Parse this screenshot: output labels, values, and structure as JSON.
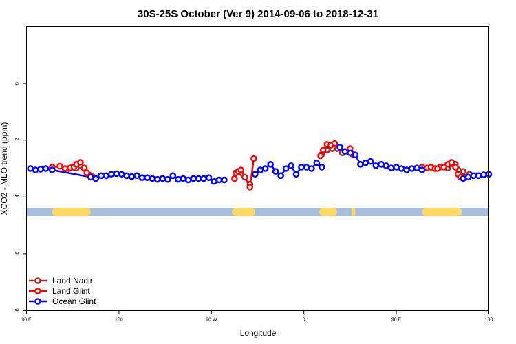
{
  "chart_data": {
    "type": "line",
    "title": "30S-25S October (Ver 9)   2014-09-06 to 2018-12-31",
    "xlabel": "Longitude",
    "ylabel": "XCO2 - MLO trend (ppm)",
    "xlim": [
      0,
      360
    ],
    "ylim": [
      -8,
      2
    ],
    "x_ticks": [
      {
        "pos": 0,
        "label": "90 E"
      },
      {
        "pos": 72,
        "label": "180"
      },
      {
        "pos": 144,
        "label": "90 W"
      },
      {
        "pos": 216,
        "label": "0"
      },
      {
        "pos": 288,
        "label": "90 E"
      },
      {
        "pos": 360,
        "label": "180"
      }
    ],
    "y_ticks": [
      {
        "pos": 0,
        "label": "0"
      },
      {
        "pos": -2,
        "label": "-2"
      },
      {
        "pos": -4,
        "label": "-4"
      },
      {
        "pos": -6,
        "label": "-6"
      },
      {
        "pos": -8,
        "label": "-8"
      }
    ],
    "grid": false,
    "legend_position": "bottom-left",
    "land_mask_band": {
      "y_range": [
        -4.67,
        -4.38
      ],
      "ocean_color": "#a6bddb",
      "land_color": "#ffd966",
      "land_segments": [
        [
          20,
          50
        ],
        [
          160,
          178
        ],
        [
          228,
          242
        ],
        [
          253,
          256
        ],
        [
          308,
          339
        ]
      ]
    },
    "series": [
      {
        "name": "Land Nadir",
        "color": "#a52a2a",
        "points": [
          [
            33,
            -3.0
          ],
          [
            36,
            -2.95
          ],
          [
            39,
            -2.98
          ],
          [
            42,
            -2.9
          ],
          [
            45,
            -3.0
          ],
          [
            48,
            -3.2
          ],
          [
            52,
            -3.3
          ],
          [
            163,
            -3.15
          ],
          [
            170,
            -3.3
          ],
          [
            174,
            -3.55
          ],
          [
            230,
            -2.5
          ],
          [
            234,
            -2.35
          ],
          [
            238,
            -2.3
          ],
          [
            242,
            -2.3
          ],
          [
            246,
            -2.45
          ],
          [
            322,
            -2.95
          ],
          [
            328,
            -2.98
          ],
          [
            334,
            -2.85
          ],
          [
            340,
            -3.1
          ],
          [
            345,
            -3.2
          ]
        ]
      },
      {
        "name": "Land Glint",
        "color": "#ff0000",
        "points": [
          [
            20,
            -2.95
          ],
          [
            26,
            -2.92
          ],
          [
            30,
            -3.0
          ],
          [
            34,
            -2.98
          ],
          [
            37,
            -2.95
          ],
          [
            39,
            -2.85
          ],
          [
            42,
            -2.78
          ],
          [
            45,
            -2.98
          ],
          [
            47,
            -3.15
          ],
          [
            50,
            -3.25
          ],
          [
            162,
            -3.35
          ],
          [
            165,
            -3.1
          ],
          [
            167,
            -3.05
          ],
          [
            174,
            -3.65
          ],
          [
            177,
            -2.65
          ],
          [
            229,
            -2.55
          ],
          [
            231,
            -2.35
          ],
          [
            234,
            -2.15
          ],
          [
            237,
            -2.18
          ],
          [
            240,
            -2.12
          ],
          [
            252,
            -2.3
          ],
          [
            254,
            -2.5
          ],
          [
            308,
            -2.95
          ],
          [
            312,
            -2.98
          ],
          [
            315,
            -2.95
          ],
          [
            318,
            -3.0
          ],
          [
            320,
            -3.0
          ],
          [
            325,
            -2.95
          ],
          [
            328,
            -2.85
          ],
          [
            331,
            -2.78
          ],
          [
            334,
            -2.95
          ],
          [
            336,
            -3.2
          ],
          [
            338,
            -3.3
          ],
          [
            341,
            -3.3
          ]
        ]
      },
      {
        "name": "Ocean Glint",
        "color": "#0000ff",
        "points": [
          [
            3,
            -3.0
          ],
          [
            7,
            -3.05
          ],
          [
            11,
            -3.02
          ],
          [
            15,
            -3.0
          ],
          [
            20,
            -3.05
          ],
          [
            50,
            -3.3
          ],
          [
            54,
            -3.35
          ],
          [
            58,
            -3.25
          ],
          [
            62,
            -3.25
          ],
          [
            66,
            -3.2
          ],
          [
            70,
            -3.18
          ],
          [
            74,
            -3.2
          ],
          [
            78,
            -3.25
          ],
          [
            82,
            -3.28
          ],
          [
            86,
            -3.25
          ],
          [
            90,
            -3.32
          ],
          [
            94,
            -3.32
          ],
          [
            98,
            -3.35
          ],
          [
            102,
            -3.38
          ],
          [
            106,
            -3.35
          ],
          [
            110,
            -3.38
          ],
          [
            114,
            -3.25
          ],
          [
            118,
            -3.38
          ],
          [
            122,
            -3.35
          ],
          [
            126,
            -3.4
          ],
          [
            130,
            -3.35
          ],
          [
            134,
            -3.35
          ],
          [
            138,
            -3.35
          ],
          [
            142,
            -3.32
          ],
          [
            146,
            -3.45
          ],
          [
            150,
            -3.4
          ],
          [
            154,
            -3.4
          ],
          [
            178,
            -3.2
          ],
          [
            182,
            -3.05
          ],
          [
            186,
            -3.0
          ],
          [
            190,
            -2.85
          ],
          [
            194,
            -3.1
          ],
          [
            198,
            -3.25
          ],
          [
            202,
            -3.0
          ],
          [
            206,
            -2.9
          ],
          [
            210,
            -3.2
          ],
          [
            214,
            -2.95
          ],
          [
            218,
            -2.95
          ],
          [
            222,
            -3.0
          ],
          [
            226,
            -2.8
          ],
          [
            230,
            -2.95
          ],
          [
            244,
            -2.25
          ],
          [
            248,
            -2.4
          ],
          [
            252,
            -2.45
          ],
          [
            256,
            -2.52
          ],
          [
            260,
            -2.85
          ],
          [
            264,
            -2.8
          ],
          [
            268,
            -2.75
          ],
          [
            272,
            -2.9
          ],
          [
            276,
            -2.85
          ],
          [
            280,
            -2.9
          ],
          [
            284,
            -2.98
          ],
          [
            288,
            -2.95
          ],
          [
            292,
            -3.0
          ],
          [
            296,
            -3.05
          ],
          [
            300,
            -3.0
          ],
          [
            304,
            -2.98
          ],
          [
            308,
            -3.05
          ],
          [
            340,
            -3.35
          ],
          [
            344,
            -3.3
          ],
          [
            348,
            -3.25
          ],
          [
            352,
            -3.25
          ],
          [
            356,
            -3.22
          ],
          [
            360,
            -3.2
          ]
        ],
        "segments": [
          [
            20,
            50
          ]
        ]
      }
    ]
  }
}
